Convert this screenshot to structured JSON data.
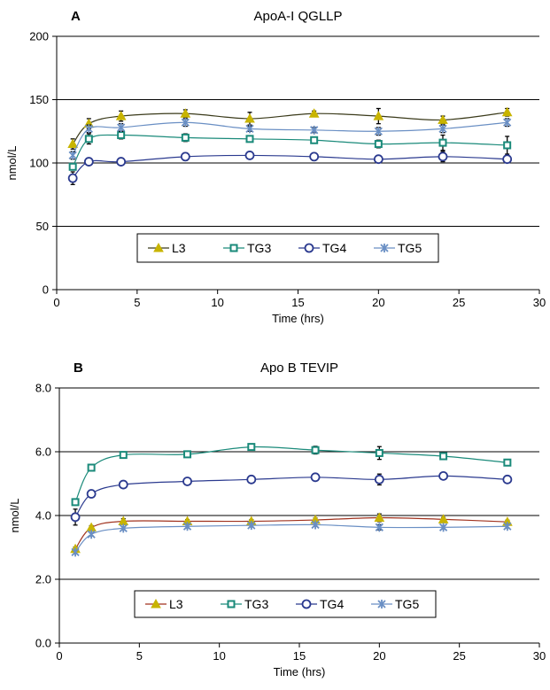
{
  "chart_data": [
    {
      "type": "line",
      "panel_label": "A",
      "title": "ApoA-I QGLLP",
      "xlabel": "Time (hrs)",
      "ylabel": "nmol/L",
      "xlim": [
        0,
        30
      ],
      "ylim": [
        0,
        200
      ],
      "xticks": [
        "0",
        "5",
        "10",
        "15",
        "20",
        "25",
        "30"
      ],
      "yticks": [
        "0",
        "50",
        "100",
        "150",
        "200"
      ],
      "grid": "horizontal",
      "legend_placement": "lower-center",
      "x": [
        1,
        2,
        4,
        8,
        12,
        16,
        20,
        24,
        28
      ],
      "series": [
        {
          "name": "L3",
          "marker": "triangle",
          "color": "#c8b400",
          "line_color": "#3a3a1a",
          "values": [
            115,
            131,
            137,
            139,
            135,
            139,
            137,
            134,
            140
          ],
          "errors": [
            4,
            4,
            4,
            3,
            5,
            2,
            6,
            3,
            3
          ]
        },
        {
          "name": "TG3",
          "marker": "square",
          "color": "#1a8a7a",
          "line_color": "#1a8a7a",
          "values": [
            97,
            119,
            122,
            120,
            119,
            118,
            115,
            116,
            114
          ],
          "errors": [
            2,
            4,
            3,
            3,
            2,
            2,
            3,
            6,
            7
          ]
        },
        {
          "name": "TG4",
          "marker": "circle",
          "color": "#2b3a8f",
          "line_color": "#2b3a8f",
          "values": [
            88,
            101,
            101,
            105,
            106,
            105,
            103,
            105,
            103
          ],
          "errors": [
            5,
            2,
            2,
            3,
            2,
            3,
            2,
            4,
            2
          ]
        },
        {
          "name": "TG5",
          "marker": "star",
          "color": "#6a8fc4",
          "line_color": "#6a8fc4",
          "values": [
            106,
            127,
            128,
            132,
            127,
            126,
            125,
            127,
            132
          ],
          "errors": [
            3,
            3,
            3,
            3,
            2,
            2,
            3,
            3,
            3
          ]
        }
      ]
    },
    {
      "type": "line",
      "panel_label": "B",
      "title": "Apo B TEVIP",
      "xlabel": "Time (hrs)",
      "ylabel": "nmol/L",
      "xlim": [
        0,
        30
      ],
      "ylim": [
        0,
        8
      ],
      "xticks": [
        "0",
        "5",
        "10",
        "15",
        "20",
        "25",
        "30"
      ],
      "yticks": [
        "0.0",
        "2.0",
        "4.0",
        "6.0",
        "8.0"
      ],
      "grid": "horizontal",
      "legend_placement": "lower-center",
      "x": [
        1,
        2,
        4,
        8,
        12,
        16,
        20,
        24,
        28
      ],
      "series": [
        {
          "name": "L3",
          "marker": "triangle",
          "color": "#c8b400",
          "line_color": "#a0321e",
          "values": [
            2.95,
            3.62,
            3.82,
            3.82,
            3.82,
            3.86,
            3.93,
            3.88,
            3.8
          ],
          "errors": [
            0.06,
            0.06,
            0.08,
            0.05,
            0.05,
            0.06,
            0.12,
            0.06,
            0.05
          ]
        },
        {
          "name": "TG3",
          "marker": "square",
          "color": "#1a8a7a",
          "line_color": "#1a8a7a",
          "values": [
            4.42,
            5.5,
            5.9,
            5.92,
            6.15,
            6.05,
            5.96,
            5.86,
            5.66
          ],
          "errors": [
            0.06,
            0.06,
            0.06,
            0.06,
            0.06,
            0.12,
            0.2,
            0.06,
            0.06
          ]
        },
        {
          "name": "TG4",
          "marker": "circle",
          "color": "#2b3a8f",
          "line_color": "#2b3a8f",
          "values": [
            3.95,
            4.68,
            4.97,
            5.07,
            5.13,
            5.2,
            5.13,
            5.24,
            5.13
          ],
          "errors": [
            0.25,
            0.07,
            0.06,
            0.09,
            0.09,
            0.06,
            0.17,
            0.06,
            0.07
          ]
        },
        {
          "name": "TG5",
          "marker": "star",
          "color": "#6a8fc4",
          "line_color": "#6a8fc4",
          "values": [
            2.85,
            3.41,
            3.6,
            3.66,
            3.69,
            3.71,
            3.63,
            3.63,
            3.66
          ],
          "errors": [
            0.05,
            0.05,
            0.05,
            0.05,
            0.05,
            0.05,
            0.08,
            0.05,
            0.05
          ]
        }
      ]
    }
  ]
}
